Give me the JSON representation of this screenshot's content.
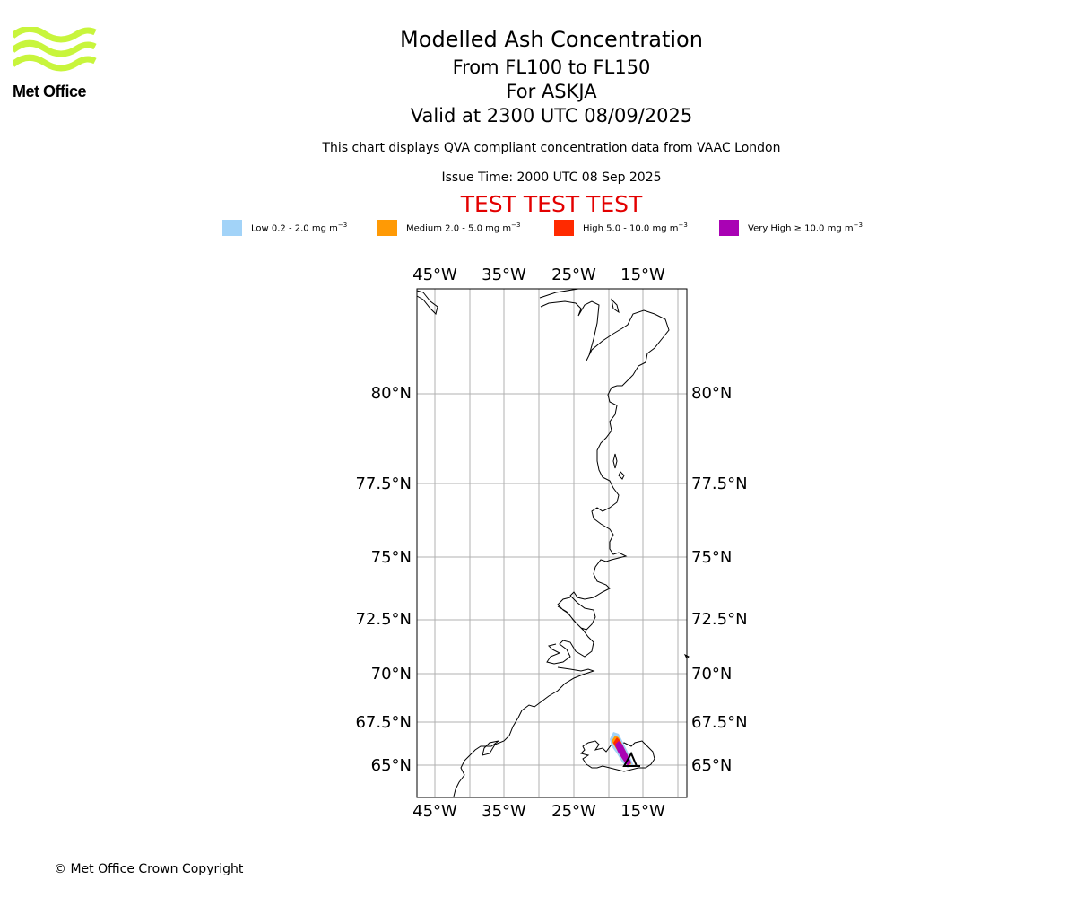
{
  "logo": {
    "text": "Met Office",
    "logo_color": "#c8f53c"
  },
  "header": {
    "title": "Modelled Ash Concentration",
    "levels": "From FL100 to FL150",
    "volcano": "For ASKJA",
    "valid": "Valid at 2300 UTC 08/09/2025",
    "note": "This chart displays QVA compliant concentration data from VAAC London",
    "issue_time": "Issue Time: 2000 UTC 08 Sep 2025",
    "test_banner": "TEST TEST TEST",
    "test_color": "#e30000"
  },
  "legend": [
    {
      "prefix": "Low 0.2 - 2.0 mg m",
      "color": "#a2d3f8"
    },
    {
      "prefix": "Medium 2.0 - 5.0 mg m",
      "color": "#ff9a05"
    },
    {
      "prefix": "High 5.0 - 10.0 mg m",
      "color": "#ff2a00"
    },
    {
      "prefix": "Very High ≥ 10.0 mg m",
      "color": "#a902b4"
    }
  ],
  "legend_exponent": "−3",
  "map": {
    "lon_labels": [
      "45°W",
      "35°W",
      "25°W",
      "15°W"
    ],
    "lat_labels": [
      "80°N",
      "77.5°N",
      "75°N",
      "72.5°N",
      "70°N",
      "67.5°N",
      "65°N"
    ],
    "volcano_lat": 65.03,
    "volcano_lon": -16.75
  },
  "footer": {
    "copyright": "© Met Office Crown Copyright"
  }
}
